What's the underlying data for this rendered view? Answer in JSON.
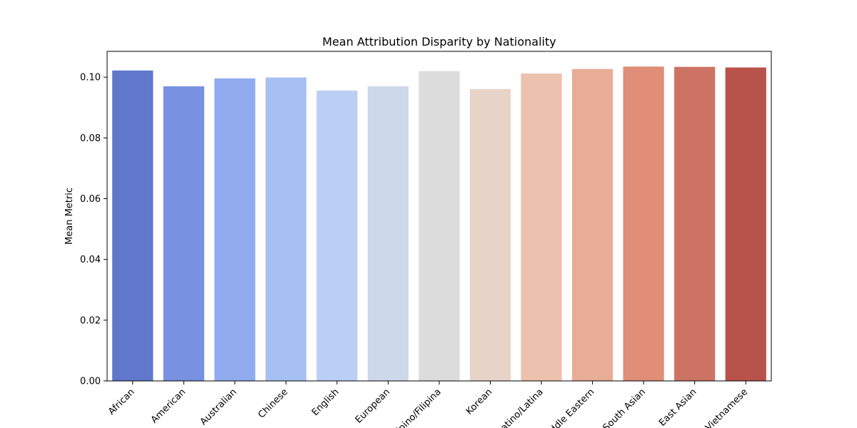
{
  "chart_data": {
    "type": "bar",
    "title": "Mean Attribution Disparity by Nationality",
    "xlabel": "",
    "ylabel": "Mean Metric",
    "ylim": [
      0,
      0.1085
    ],
    "yticks": [
      "0.00",
      "0.02",
      "0.04",
      "0.06",
      "0.08",
      "0.10"
    ],
    "grid": false,
    "legend": "none",
    "categories": [
      "African",
      "American",
      "Australian",
      "Chinese",
      "English",
      "European",
      "Filipino/Filipina",
      "Korean",
      "Latino/Latina",
      "Middle Eastern",
      "South Asian",
      "East Asian",
      "Vietnamese"
    ],
    "values": [
      0.1022,
      0.097,
      0.0996,
      0.0999,
      0.0956,
      0.097,
      0.102,
      0.0961,
      0.1012,
      0.1027,
      0.1035,
      0.1034,
      0.1032
    ],
    "colors": [
      "#6177cc",
      "#7891e0",
      "#91abee",
      "#a7c0f4",
      "#bbcef3",
      "#cdd8ea",
      "#dcdcdc",
      "#e8d3c8",
      "#ecc1ae",
      "#e7ad96",
      "#e08e77",
      "#cd7363",
      "#b8534b"
    ]
  }
}
